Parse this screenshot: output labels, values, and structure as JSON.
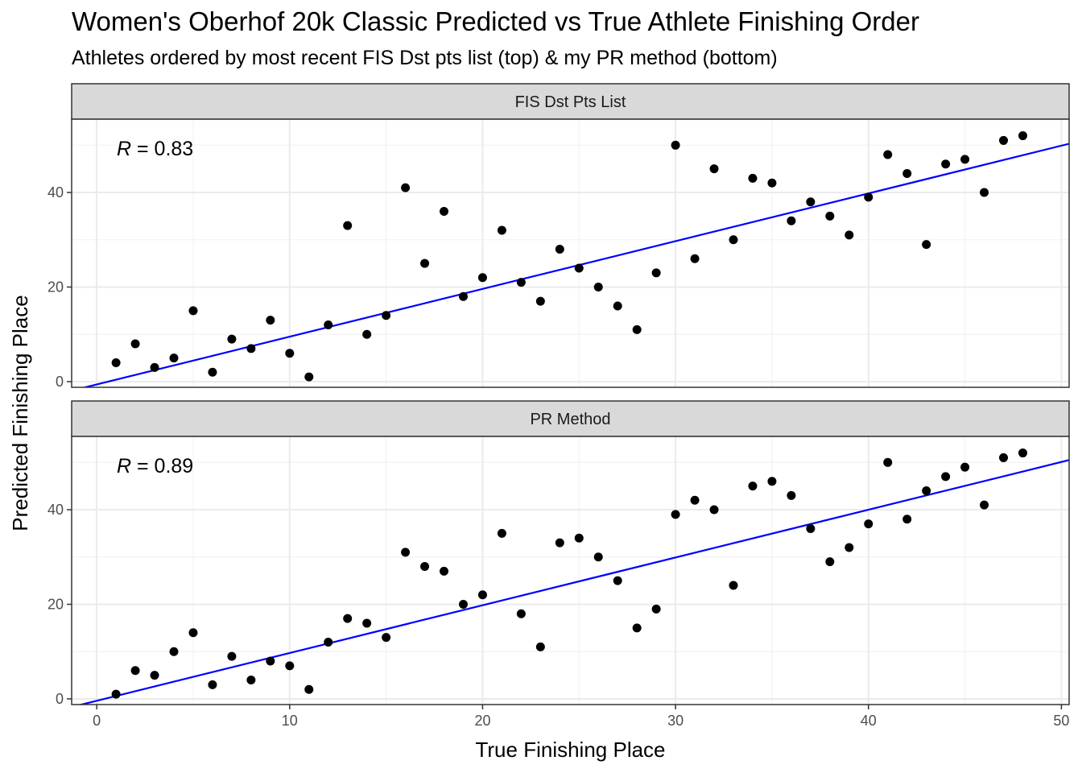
{
  "title": "Women's Oberhof 20k Classic Predicted vs True Athlete Finishing Order",
  "subtitle": "Athletes ordered by most recent FIS Dst pts list (top) & my PR method (bottom)",
  "chart_data": {
    "type": "scatter",
    "xlabel": "True Finishing Place",
    "ylabel": "Predicted Finishing Place",
    "xlim": [
      -1.3,
      50.4
    ],
    "ylim": [
      -1.2,
      55.5
    ],
    "x_ticks": [
      0,
      10,
      20,
      30,
      40,
      50
    ],
    "y_ticks": [
      0,
      20,
      40
    ],
    "grid": true,
    "point_color": "#000000",
    "line_color": "#0000ff",
    "panels": [
      {
        "strip": "FIS Dst Pts List",
        "r_label": "R",
        "r_value": "= 0.83",
        "fit_line": {
          "intercept": -0.6,
          "slope": 1.01
        },
        "points": [
          [
            1,
            4
          ],
          [
            2,
            8
          ],
          [
            3,
            3
          ],
          [
            4,
            5
          ],
          [
            5,
            15
          ],
          [
            6,
            2
          ],
          [
            7,
            9
          ],
          [
            8,
            7
          ],
          [
            9,
            13
          ],
          [
            10,
            6
          ],
          [
            11,
            1
          ],
          [
            12,
            12
          ],
          [
            13,
            33
          ],
          [
            14,
            10
          ],
          [
            15,
            14
          ],
          [
            16,
            41
          ],
          [
            17,
            25
          ],
          [
            18,
            36
          ],
          [
            19,
            18
          ],
          [
            20,
            22
          ],
          [
            21,
            32
          ],
          [
            22,
            21
          ],
          [
            23,
            17
          ],
          [
            24,
            28
          ],
          [
            25,
            24
          ],
          [
            26,
            20
          ],
          [
            27,
            16
          ],
          [
            28,
            11
          ],
          [
            29,
            23
          ],
          [
            30,
            50
          ],
          [
            31,
            26
          ],
          [
            32,
            45
          ],
          [
            33,
            30
          ],
          [
            34,
            43
          ],
          [
            35,
            42
          ],
          [
            36,
            34
          ],
          [
            37,
            38
          ],
          [
            38,
            35
          ],
          [
            39,
            31
          ],
          [
            40,
            39
          ],
          [
            41,
            48
          ],
          [
            42,
            44
          ],
          [
            43,
            29
          ],
          [
            44,
            46
          ],
          [
            45,
            47
          ],
          [
            46,
            40
          ],
          [
            47,
            51
          ],
          [
            48,
            52
          ]
        ]
      },
      {
        "strip": "PR Method",
        "r_label": "R",
        "r_value": "= 0.89",
        "fit_line": {
          "intercept": -0.4,
          "slope": 1.01
        },
        "points": [
          [
            1,
            1
          ],
          [
            2,
            6
          ],
          [
            3,
            5
          ],
          [
            4,
            10
          ],
          [
            5,
            14
          ],
          [
            6,
            3
          ],
          [
            7,
            9
          ],
          [
            8,
            4
          ],
          [
            9,
            8
          ],
          [
            10,
            7
          ],
          [
            11,
            2
          ],
          [
            12,
            12
          ],
          [
            13,
            17
          ],
          [
            14,
            16
          ],
          [
            15,
            13
          ],
          [
            16,
            31
          ],
          [
            17,
            28
          ],
          [
            18,
            27
          ],
          [
            19,
            20
          ],
          [
            20,
            22
          ],
          [
            21,
            35
          ],
          [
            22,
            18
          ],
          [
            23,
            11
          ],
          [
            24,
            33
          ],
          [
            25,
            34
          ],
          [
            26,
            30
          ],
          [
            27,
            25
          ],
          [
            28,
            15
          ],
          [
            29,
            19
          ],
          [
            30,
            39
          ],
          [
            31,
            42
          ],
          [
            32,
            40
          ],
          [
            33,
            24
          ],
          [
            34,
            45
          ],
          [
            35,
            46
          ],
          [
            36,
            43
          ],
          [
            37,
            36
          ],
          [
            38,
            29
          ],
          [
            39,
            32
          ],
          [
            40,
            37
          ],
          [
            41,
            50
          ],
          [
            42,
            38
          ],
          [
            43,
            44
          ],
          [
            44,
            47
          ],
          [
            45,
            49
          ],
          [
            46,
            41
          ],
          [
            47,
            51
          ],
          [
            48,
            52
          ]
        ]
      }
    ]
  }
}
